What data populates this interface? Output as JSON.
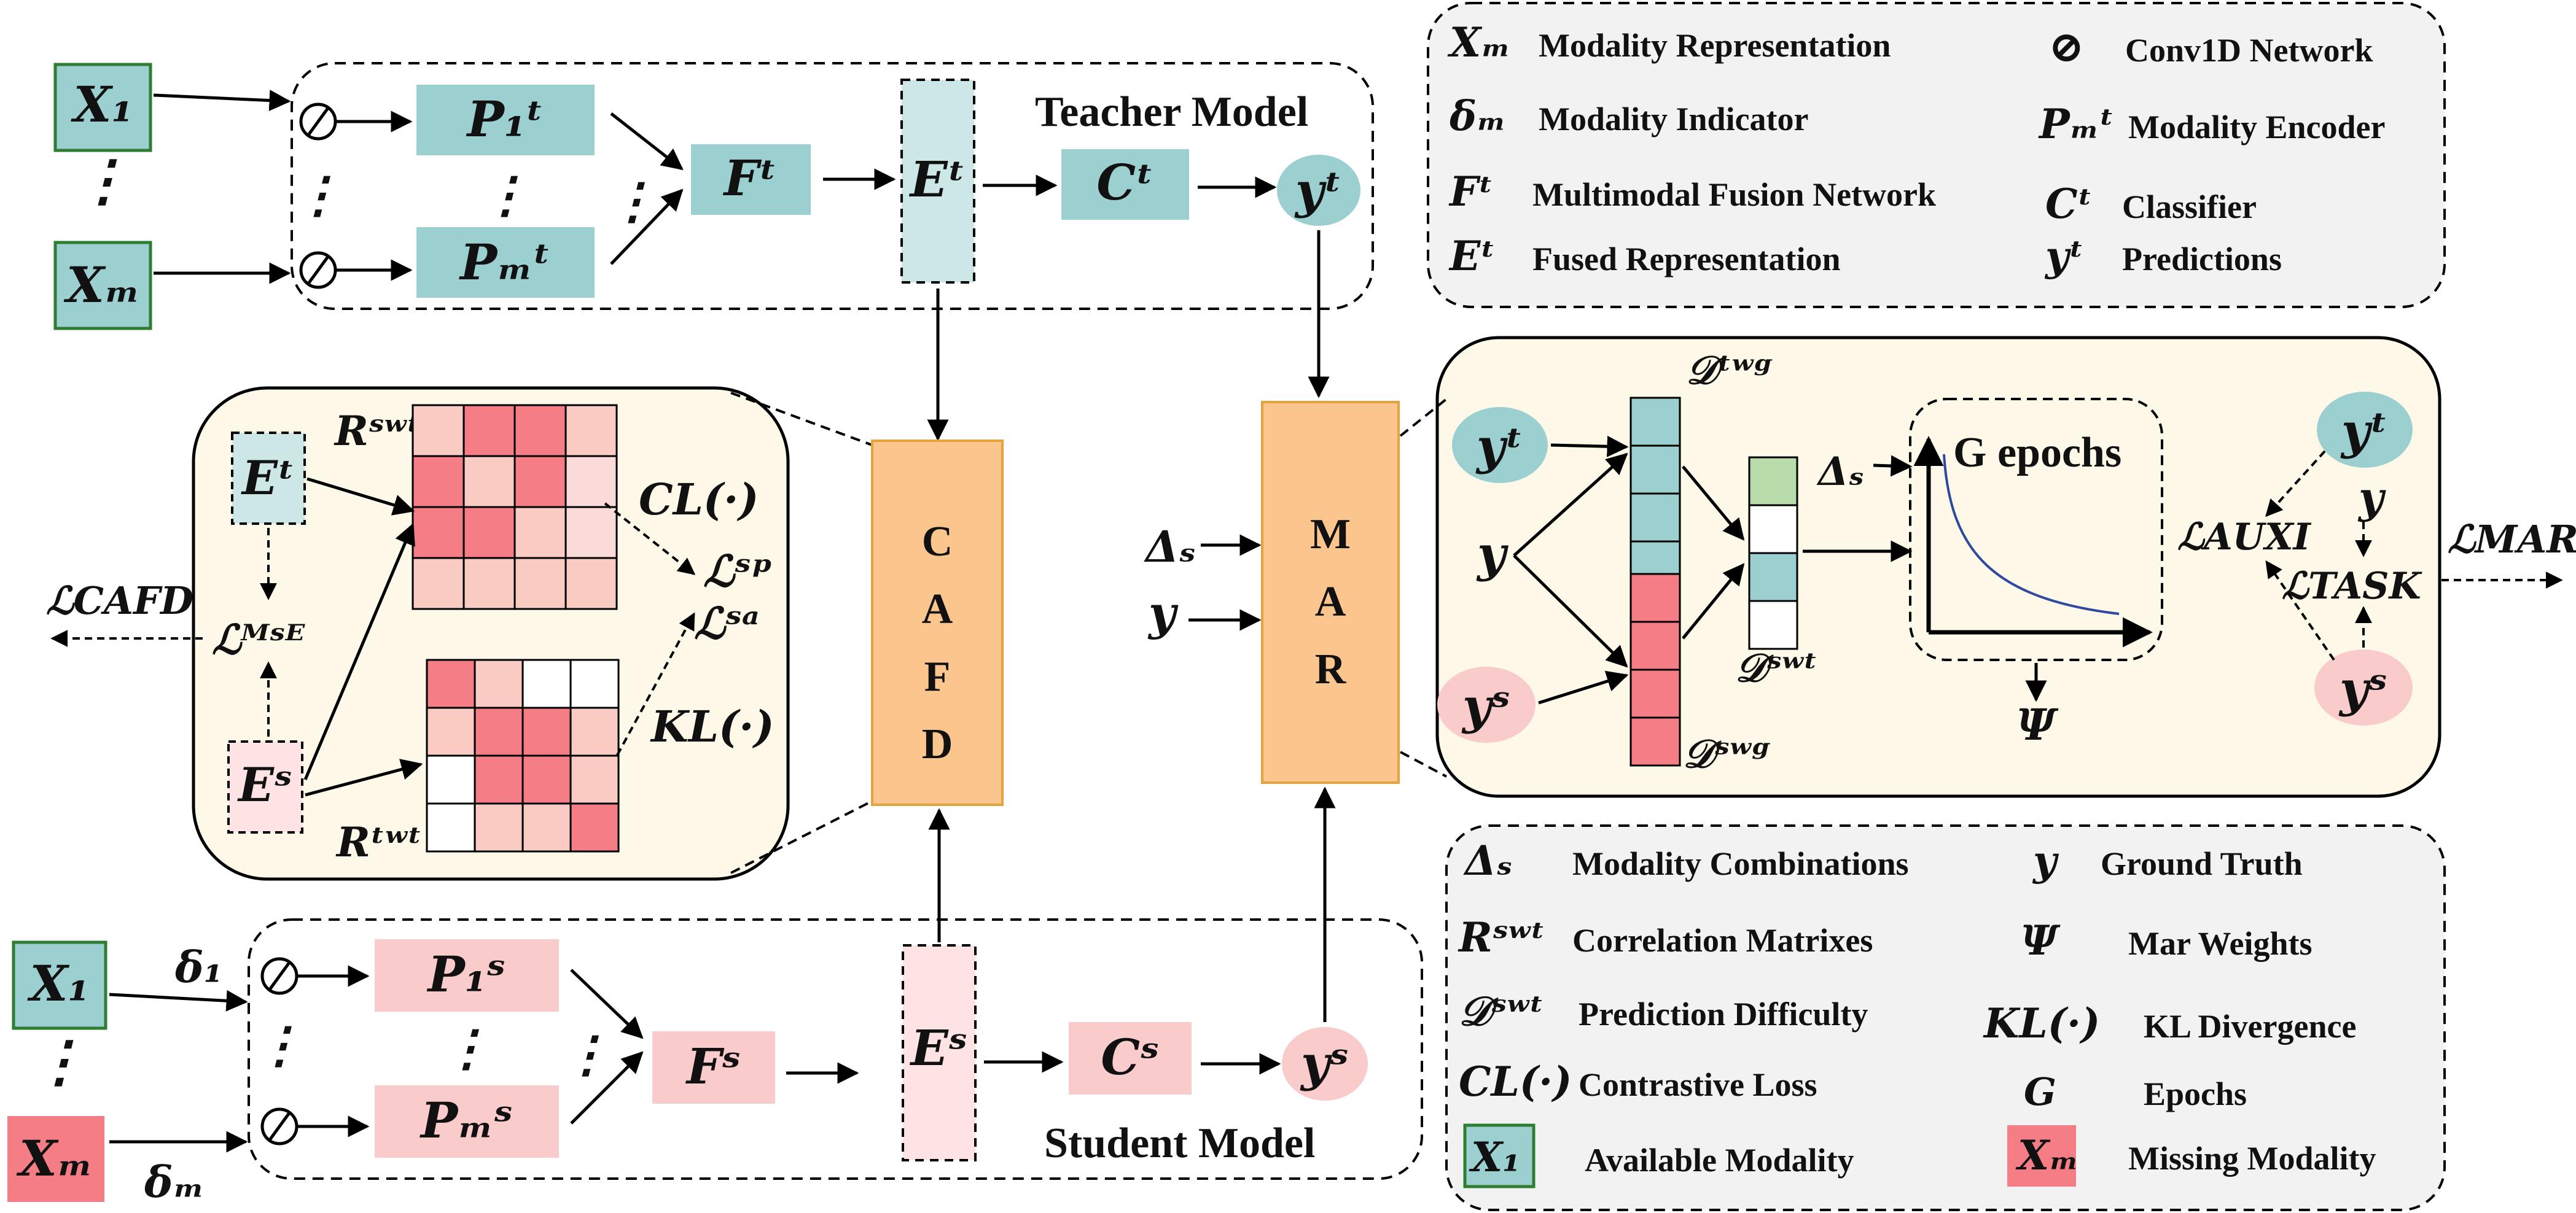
{
  "teacher": {
    "title": "Teacher Model",
    "x_first": "X₁",
    "x_last": "Xₘ",
    "enc_first": "P₁ᵗ",
    "enc_last": "Pₘᵗ",
    "fusion": "Fᵗ",
    "fused": "Eᵗ",
    "classifier": "Cᵗ",
    "pred": "yᵗ"
  },
  "student": {
    "title": "Student Model",
    "x_first": "X₁",
    "x_last": "Xₘ",
    "delta_first": "δ₁",
    "delta_last": "δₘ",
    "enc_first": "P₁ˢ",
    "enc_last": "Pₘˢ",
    "fusion": "Fˢ",
    "fused": "Eˢ",
    "classifier": "Cˢ",
    "pred": "yˢ"
  },
  "cafd": {
    "letters": [
      "C",
      "A",
      "F",
      "D"
    ],
    "et": "Eᵗ",
    "es": "Eˢ",
    "r_st": "Rˢʷᵗ",
    "r_tt": "Rᵗʷᵗ",
    "cl": "CL(·)",
    "kl": "KL(·)",
    "l_sp": "ℒˢᵖ",
    "l_sa": "ℒˢᵃ",
    "l_mse": "ℒᴹˢᴱ",
    "l_cafd": "ℒCAFD",
    "matrix_rst": [
      [
        "#f9cbc2",
        "#f47d86",
        "#f47d86",
        "#f9cbc2"
      ],
      [
        "#f47d86",
        "#f9cbc2",
        "#f47d86",
        "#fbdada"
      ],
      [
        "#f47d86",
        "#f47d86",
        "#f9cbc2",
        "#fbdada"
      ],
      [
        "#f9cbc2",
        "#f9cbc2",
        "#f9cbc2",
        "#f9cbc2"
      ]
    ],
    "matrix_rtt": [
      [
        "#f47d86",
        "#f9cbc2",
        "#ffffff",
        "#ffffff"
      ],
      [
        "#f9cbc2",
        "#f47d86",
        "#f47d86",
        "#f9cbc2"
      ],
      [
        "#ffffff",
        "#f47d86",
        "#f47d86",
        "#f9cbc2"
      ],
      [
        "#ffffff",
        "#f9cbc2",
        "#f9cbc2",
        "#f47d86"
      ]
    ]
  },
  "mar": {
    "letters": [
      "M",
      "A",
      "R"
    ],
    "input_delta": "Δₛ",
    "input_y": "y",
    "yt": "yᵗ",
    "ys": "yˢ",
    "y": "y",
    "d_tg": "𝒟ᵗʷᵍ",
    "d_sg": "𝒟ˢʷᵍ",
    "d_st": "𝒟ˢʷᵗ",
    "delta_s": "Δₛ",
    "g_epochs": "G epochs",
    "psi": "Ψ",
    "l_auxi": "ℒAUXI",
    "l_task": "ℒTASK",
    "l_mar": "ℒMAR",
    "d_st_colors": [
      "#b7dcaa",
      "#ffffff",
      "#9cd0d0",
      "#ffffff"
    ]
  },
  "legend_top": [
    {
      "sym": "Xₘ",
      "text": "Modality Representation"
    },
    {
      "sym": "δₘ",
      "text": "Modality Indicator"
    },
    {
      "sym": "Fᵗ",
      "text": "Multimodal Fusion Network"
    },
    {
      "sym": "Eᵗ",
      "text": "Fused Representation"
    },
    {
      "sym": "⊘",
      "text": "Conv1D Network"
    },
    {
      "sym": "Pₘᵗ",
      "text": "Modality Encoder"
    },
    {
      "sym": "Cᵗ",
      "text": "Classifier"
    },
    {
      "sym": "yᵗ",
      "text": "Predictions"
    }
  ],
  "legend_bottom": [
    {
      "sym": "Δₛ",
      "text": "Modality Combinations"
    },
    {
      "sym": "Rˢʷᵗ",
      "text": "Correlation Matrixes"
    },
    {
      "sym": "𝒟ˢʷᵗ",
      "text": "Prediction Difficulty"
    },
    {
      "sym": "CL(·)",
      "text": "Contrastive Loss"
    },
    {
      "sym": "X₁",
      "text": "Available Modality"
    },
    {
      "sym": "y",
      "text": "Ground Truth"
    },
    {
      "sym": "Ψ",
      "text": "Mar Weights"
    },
    {
      "sym": "KL(·)",
      "text": "KL Divergence"
    },
    {
      "sym": "G",
      "text": "Epochs"
    },
    {
      "sym": "Xₘ",
      "text": "Missing Modality"
    }
  ],
  "colors": {
    "teal": "#9cd0d0",
    "teal_light": "#cde6e6",
    "pink": "#f9cbcb",
    "pink_light": "#fde3e3",
    "red": "#f47d86",
    "orange": "#fbc68e",
    "cream": "#fdf8e8",
    "legend_bg": "#f2f2f2"
  }
}
